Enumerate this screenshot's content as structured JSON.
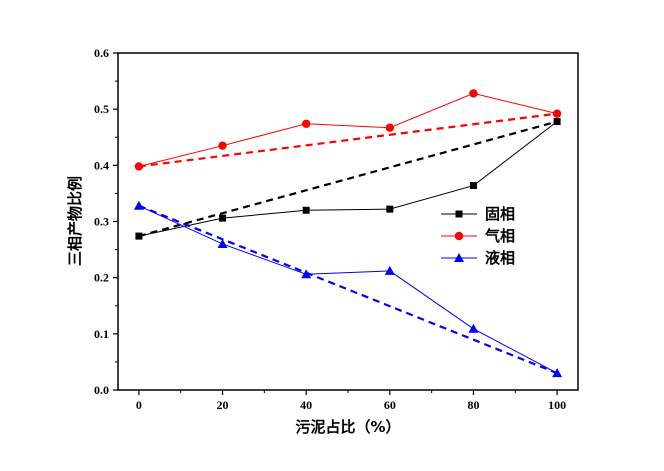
{
  "chart_data": {
    "type": "line",
    "title": "",
    "xlabel": "污泥占比（%）",
    "ylabel": "三相产物比例",
    "xlim": [
      -5,
      105
    ],
    "ylim": [
      0.0,
      0.6
    ],
    "x_ticks": [
      0,
      20,
      40,
      60,
      80,
      100
    ],
    "x_tick_labels": [
      "0",
      "20",
      "40",
      "60",
      "80",
      "100"
    ],
    "y_ticks": [
      0.0,
      0.1,
      0.2,
      0.3,
      0.4,
      0.5,
      0.6
    ],
    "y_tick_labels": [
      "0.0",
      "0.1",
      "0.2",
      "0.3",
      "0.4",
      "0.5",
      "0.6"
    ],
    "legend_position": "right-middle",
    "grid": false,
    "x": [
      0,
      20,
      40,
      60,
      80,
      100
    ],
    "series": [
      {
        "name": "固相",
        "color": "#000000",
        "marker": "square",
        "values": [
          0.274,
          0.306,
          0.32,
          0.322,
          0.364,
          0.478
        ]
      },
      {
        "name": "气相",
        "color": "#ff0000",
        "marker": "circle",
        "values": [
          0.398,
          0.435,
          0.474,
          0.467,
          0.528,
          0.492
        ]
      },
      {
        "name": "液相",
        "color": "#0000ff",
        "marker": "triangle",
        "values": [
          0.328,
          0.26,
          0.206,
          0.212,
          0.109,
          0.03
        ]
      }
    ],
    "reference_lines": [
      {
        "color": "#000000",
        "style": "dashed",
        "x": [
          0,
          100
        ],
        "values": [
          0.274,
          0.478
        ]
      },
      {
        "color": "#ff0000",
        "style": "dashed",
        "x": [
          0,
          100
        ],
        "values": [
          0.398,
          0.492
        ]
      },
      {
        "color": "#0000ff",
        "style": "dashed",
        "x": [
          0,
          100
        ],
        "values": [
          0.328,
          0.03
        ]
      }
    ]
  }
}
